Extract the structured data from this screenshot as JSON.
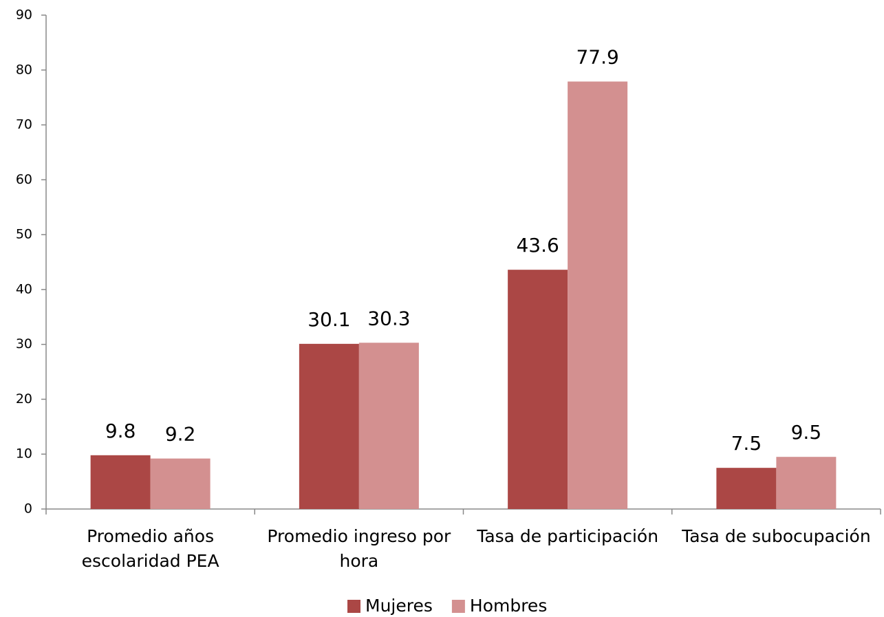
{
  "chart_data": {
    "type": "bar",
    "categories": [
      "Promedio años escolaridad PEA",
      "Promedio ingreso por hora",
      "Tasa de participación",
      "Tasa de subocupación"
    ],
    "series": [
      {
        "name": "Mujeres",
        "color": "#ab4745",
        "values": [
          9.8,
          30.1,
          43.6,
          7.5
        ]
      },
      {
        "name": "Hombres",
        "color": "#d39090",
        "values": [
          9.2,
          30.3,
          77.9,
          9.5
        ]
      }
    ],
    "ylim": [
      0,
      90
    ],
    "yticks": [
      0,
      10,
      20,
      30,
      40,
      50,
      60,
      70,
      80,
      90
    ],
    "grid": false,
    "legend": "bottom"
  }
}
